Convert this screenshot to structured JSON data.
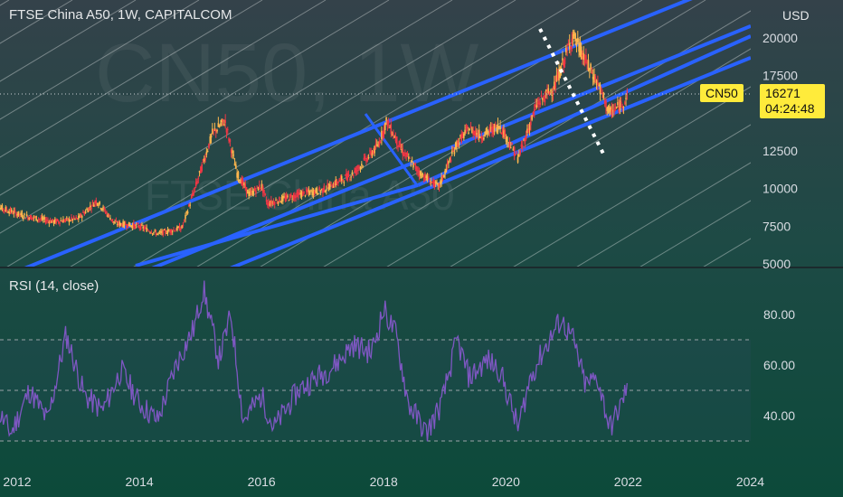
{
  "header": {
    "title": "FTSE China A50, 1W, CAPITALCOM",
    "currency": "USD",
    "watermark_symbol": "CN50, 1W",
    "watermark_name": "FTSE China A50"
  },
  "price_tag": {
    "symbol": "CN50",
    "price": "16271",
    "countdown": "04:24:48"
  },
  "rsi_label": "RSI (14, close)",
  "colors": {
    "channel": "#2962ff",
    "candle_up": "#ffb74d",
    "candle_down": "#f23645",
    "rsi_line": "#7e57c2",
    "tag": "#ffeb3b"
  },
  "chart_data": [
    {
      "type": "candlestick",
      "title": "FTSE China A50, 1W, CAPITALCOM",
      "y_ticks": [
        "20000",
        "17500",
        "12500",
        "10000",
        "7500",
        "5000"
      ],
      "ylim": [
        5000,
        21000
      ],
      "x_ticks": [
        "2012",
        "2014",
        "2016",
        "2018",
        "2020",
        "2022",
        "2024"
      ],
      "xlim": [
        2011.6,
        2025.4
      ],
      "approx_path": [
        {
          "x": 2011.6,
          "y": 8900
        },
        {
          "x": 2012.1,
          "y": 8200
        },
        {
          "x": 2012.6,
          "y": 7800
        },
        {
          "x": 2013.0,
          "y": 8000
        },
        {
          "x": 2013.3,
          "y": 9200
        },
        {
          "x": 2013.6,
          "y": 7700
        },
        {
          "x": 2014.0,
          "y": 7500
        },
        {
          "x": 2014.3,
          "y": 7000
        },
        {
          "x": 2014.7,
          "y": 7400
        },
        {
          "x": 2014.95,
          "y": 10500
        },
        {
          "x": 2015.2,
          "y": 13700
        },
        {
          "x": 2015.4,
          "y": 14500
        },
        {
          "x": 2015.6,
          "y": 11000
        },
        {
          "x": 2015.8,
          "y": 9600
        },
        {
          "x": 2016.0,
          "y": 10200
        },
        {
          "x": 2016.1,
          "y": 9000
        },
        {
          "x": 2016.6,
          "y": 9600
        },
        {
          "x": 2017.0,
          "y": 9900
        },
        {
          "x": 2017.5,
          "y": 11000
        },
        {
          "x": 2017.9,
          "y": 12800
        },
        {
          "x": 2018.05,
          "y": 14500
        },
        {
          "x": 2018.3,
          "y": 12500
        },
        {
          "x": 2018.6,
          "y": 11000
        },
        {
          "x": 2018.9,
          "y": 10100
        },
        {
          "x": 2019.2,
          "y": 13000
        },
        {
          "x": 2019.4,
          "y": 14000
        },
        {
          "x": 2019.6,
          "y": 13500
        },
        {
          "x": 2019.9,
          "y": 14200
        },
        {
          "x": 2020.2,
          "y": 12000
        },
        {
          "x": 2020.5,
          "y": 15500
        },
        {
          "x": 2020.8,
          "y": 16800
        },
        {
          "x": 2021.1,
          "y": 20200
        },
        {
          "x": 2021.3,
          "y": 18500
        },
        {
          "x": 2021.5,
          "y": 17000
        },
        {
          "x": 2021.7,
          "y": 15000
        },
        {
          "x": 2021.9,
          "y": 15600
        },
        {
          "x": 2022.0,
          "y": 16271
        }
      ],
      "last_price": 16271,
      "annotations": {
        "channel_lines": 3,
        "channel_slope_note": "ascending parallel channel",
        "dotted_projection": {
          "from": {
            "x": 2021.1,
            "y": 20400
          },
          "to": {
            "x": 2022.1,
            "y": 12200
          }
        }
      }
    },
    {
      "type": "line",
      "title": "RSI (14, close)",
      "y_ticks": [
        "80.00",
        "60.00",
        "40.00"
      ],
      "ylim": [
        25,
        95
      ],
      "bands": [
        70,
        50,
        30
      ],
      "x_ticks": [
        "2012",
        "2014",
        "2016",
        "2018",
        "2020",
        "2022",
        "2024"
      ],
      "xlim": [
        2011.6,
        2025.4
      ],
      "series": [
        {
          "values": [
            {
              "x": 2011.6,
              "y": 45
            },
            {
              "x": 2011.9,
              "y": 33
            },
            {
              "x": 2012.2,
              "y": 50
            },
            {
              "x": 2012.5,
              "y": 38
            },
            {
              "x": 2012.8,
              "y": 72
            },
            {
              "x": 2013.1,
              "y": 48
            },
            {
              "x": 2013.4,
              "y": 42
            },
            {
              "x": 2013.7,
              "y": 58
            },
            {
              "x": 2014.0,
              "y": 45
            },
            {
              "x": 2014.3,
              "y": 38
            },
            {
              "x": 2014.6,
              "y": 60
            },
            {
              "x": 2014.9,
              "y": 75
            },
            {
              "x": 2015.05,
              "y": 90
            },
            {
              "x": 2015.3,
              "y": 62
            },
            {
              "x": 2015.5,
              "y": 80
            },
            {
              "x": 2015.7,
              "y": 38
            },
            {
              "x": 2016.0,
              "y": 48
            },
            {
              "x": 2016.2,
              "y": 35
            },
            {
              "x": 2016.6,
              "y": 50
            },
            {
              "x": 2016.9,
              "y": 55
            },
            {
              "x": 2017.2,
              "y": 60
            },
            {
              "x": 2017.5,
              "y": 68
            },
            {
              "x": 2017.8,
              "y": 65
            },
            {
              "x": 2018.0,
              "y": 82
            },
            {
              "x": 2018.2,
              "y": 72
            },
            {
              "x": 2018.4,
              "y": 45
            },
            {
              "x": 2018.7,
              "y": 33
            },
            {
              "x": 2018.95,
              "y": 45
            },
            {
              "x": 2019.2,
              "y": 70
            },
            {
              "x": 2019.4,
              "y": 55
            },
            {
              "x": 2019.7,
              "y": 62
            },
            {
              "x": 2019.9,
              "y": 58
            },
            {
              "x": 2020.2,
              "y": 35
            },
            {
              "x": 2020.4,
              "y": 55
            },
            {
              "x": 2020.6,
              "y": 65
            },
            {
              "x": 2020.9,
              "y": 78
            },
            {
              "x": 2021.1,
              "y": 70
            },
            {
              "x": 2021.3,
              "y": 52
            },
            {
              "x": 2021.5,
              "y": 55
            },
            {
              "x": 2021.7,
              "y": 35
            },
            {
              "x": 2021.9,
              "y": 45
            },
            {
              "x": 2022.0,
              "y": 53
            }
          ]
        }
      ]
    }
  ]
}
